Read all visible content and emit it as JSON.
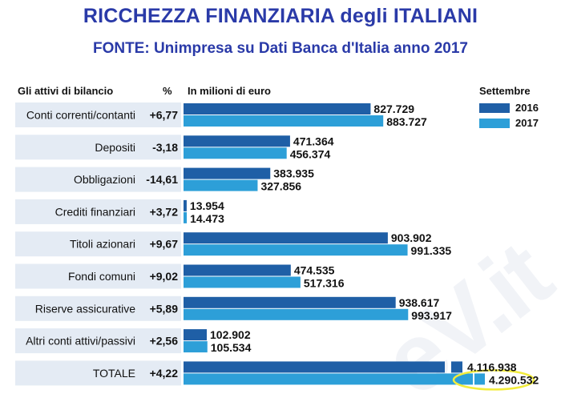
{
  "header": {
    "title_line1": "RICCHEZZA FINANZIARIA degli   ITALIANI",
    "title_line2": "FONTE: Unimpresa su Dati Banca d'Italia anno 2017",
    "col_category": "Gli attivi di bilancio",
    "col_percent": "%",
    "col_values": "In milioni di euro"
  },
  "legend": {
    "title": "Settembre",
    "items": [
      {
        "label": "2016",
        "color": "#1f5fa6"
      },
      {
        "label": "2017",
        "color": "#2d9fd8"
      }
    ]
  },
  "chart_data": {
    "type": "bar",
    "orientation": "horizontal",
    "categories": [
      "Conti correnti/contanti",
      "Depositi",
      "Obbligazioni",
      "Crediti finanziari",
      "Titoli azionari",
      "Fondi comuni",
      "Riserve assicurative",
      "Altri conti attivi/passivi",
      "TOTALE"
    ],
    "percent_change": [
      "+6,77",
      "-3,18",
      "-14,61",
      "+3,72",
      "+9,67",
      "+9,02",
      "+5,89",
      "+2,56",
      "+4,22"
    ],
    "series": [
      {
        "name": "2016",
        "values": [
          827.729,
          471.364,
          383.935,
          13.954,
          903.902,
          474.535,
          938.617,
          102.902,
          4116.938
        ],
        "labels": [
          "827.729",
          "471.364",
          "383.935",
          "13.954",
          "903.902",
          "474.535",
          "938.617",
          "102.902",
          "4.116.938"
        ]
      },
      {
        "name": "2017",
        "values": [
          883.727,
          456.374,
          327.856,
          14.473,
          991.335,
          517.316,
          993.917,
          105.534,
          4290.532
        ],
        "labels": [
          "883.727",
          "456.374",
          "327.856",
          "14.473",
          "991.335",
          "517.316",
          "993.917",
          "105.534",
          "4.290.532"
        ]
      }
    ],
    "colors": {
      "2016": "#1f5fa6",
      "2017": "#2d9fd8",
      "row_bg": "#e4ebf4",
      "highlight": "#f2ec3a"
    },
    "note": "TOTALE bars are truncated (broken scale)"
  },
  "watermark": "eV.it"
}
